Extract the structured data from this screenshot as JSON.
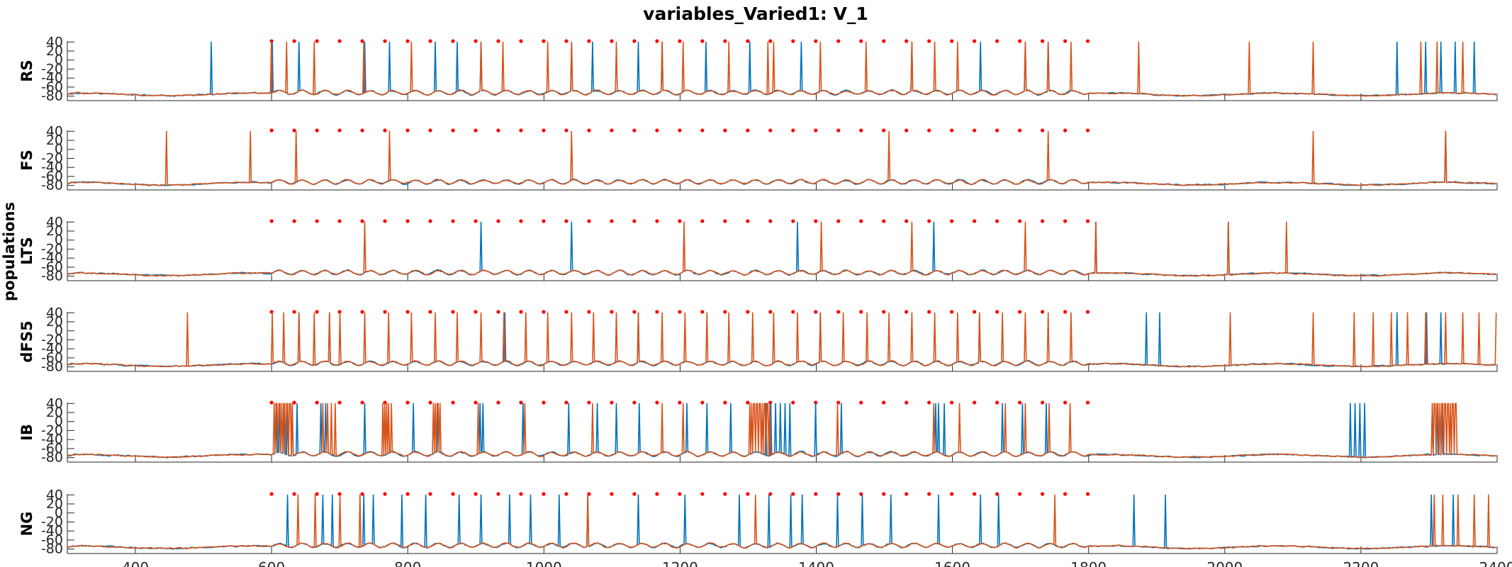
{
  "chart_data": {
    "type": "line",
    "title": "variables_Varied1: V_1",
    "ylabel": "populations",
    "xlim": [
      300,
      2400
    ],
    "xticks": [
      400,
      600,
      800,
      1000,
      1200,
      1400,
      1600,
      1800,
      2000,
      2200,
      2400
    ],
    "ylim": [
      -90,
      42
    ],
    "yticks": [
      40,
      20,
      0,
      -20,
      -40,
      -60,
      -80
    ],
    "ytick_labels": [
      "40",
      "20",
      "0",
      "-20",
      "-40",
      "-60",
      "-80"
    ],
    "series_colors": [
      "#0072BD",
      "#D95319"
    ],
    "marker_color": "#FF0000",
    "stimulus_markers": {
      "start": 600,
      "end": 1800,
      "interval": 33.3,
      "y": 42
    },
    "panels": [
      {
        "name": "RS",
        "series": [
          {
            "color": "#0072BD",
            "spikes": [
              512,
              601,
              640,
              737,
              773,
              841,
              872,
              907,
              1040,
              1072,
              1139,
              1173,
              1238,
              1303,
              1378,
              1540,
              1641,
              1707,
              1740,
              2253,
              2295,
              2318,
              2338,
              2367
            ]
          },
          {
            "color": "#D95319",
            "spikes": [
              600,
              622,
              663,
              736,
              805,
              907,
              940,
              1005,
              1040,
              1107,
              1173,
              1205,
              1272,
              1329,
              1338,
              1406,
              1473,
              1541,
              1574,
              1608,
              1707,
              1740,
              1774,
              1874,
              2036,
              2130,
              2288,
              2312,
              2350
            ]
          }
        ]
      },
      {
        "name": "FS",
        "series": [
          {
            "color": "#0072BD",
            "spikes": [
              2325
            ]
          },
          {
            "color": "#D95319",
            "spikes": [
              445,
              569,
              636,
              773,
              1040,
              1507,
              1740,
              2130,
              2325
            ]
          }
        ]
      },
      {
        "name": "LTS",
        "series": [
          {
            "color": "#0072BD",
            "spikes": [
              907,
              1040,
              1373,
              1573,
              1810,
              2005
            ]
          },
          {
            "color": "#D95319",
            "spikes": [
              737,
              1206,
              1407,
              1540,
              1707,
              1810,
              2005,
              2090
            ]
          }
        ]
      },
      {
        "name": "dFS5",
        "series": [
          {
            "color": "#0072BD",
            "spikes": [
              640,
              685,
              942,
              1138,
              1406,
              1640,
              1885,
              1905,
              2253,
              2296,
              2318
            ]
          },
          {
            "color": "#D95319",
            "spikes": [
              477,
              601,
              618,
              640,
              663,
              685,
              700,
              737,
              772,
              805,
              840,
              873,
              907,
              941,
              974,
              1005,
              1040,
              1073,
              1107,
              1139,
              1173,
              1207,
              1240,
              1272,
              1306,
              1338,
              1373,
              1406,
              1440,
              1474,
              1507,
              1541,
              1574,
              1608,
              1640,
              1674,
              1707,
              1740,
              1774,
              2008,
              2130,
              2190,
              2218,
              2244,
              2268,
              2295,
              2325,
              2350,
              2374,
              2399
            ]
          }
        ]
      },
      {
        "name": "IB",
        "series": [
          {
            "color": "#0072BD",
            "spikes": [
              606,
              612,
              618,
              624,
              630,
              637,
              672,
              680,
              737,
              808,
              844,
              906,
              910,
              969,
              1037,
              1078,
              1107,
              1140,
              1210,
              1240,
              1274,
              1326,
              1333,
              1340,
              1347,
              1354,
              1361,
              1399,
              1437,
              1576,
              1580,
              1588,
              1673,
              1703,
              1738,
              2185,
              2192,
              2199,
              2206,
              2305,
              2312,
              2319
            ]
          },
          {
            "color": "#D95319",
            "spikes": [
              675,
              682,
              688,
              694,
              776,
              840,
              904,
              972,
              1071,
              1174,
              1205,
              1431,
              1573,
              1610,
              1677,
              1707,
              1742,
              1773
            ]
          }
        ],
        "bursts": [
          {
            "color": "#D95319",
            "start": 604,
            "end": 632,
            "step": 2.2
          },
          {
            "color": "#D95319",
            "start": 764,
            "end": 773,
            "step": 2.4
          },
          {
            "color": "#D95319",
            "start": 838,
            "end": 848,
            "step": 2.4
          },
          {
            "color": "#D95319",
            "start": 1303,
            "end": 1333,
            "step": 2.2
          },
          {
            "color": "#D95319",
            "start": 2305,
            "end": 2342,
            "step": 2.2
          }
        ]
      },
      {
        "name": "NG",
        "series": [
          {
            "color": "#0072BD",
            "spikes": [
              623,
              675,
              689,
              735,
              750,
              792,
              826,
              876,
              907,
              950,
              981,
              1022,
              1064,
              1139,
              1207,
              1287,
              1331,
              1362,
              1380,
              1431,
              1467,
              1510,
              1579,
              1641,
              1668,
              1867,
              1913,
              2303,
              2336
            ]
          },
          {
            "color": "#D95319",
            "spikes": [
              639,
              664,
              700,
              730,
              1064,
              1311,
              1751,
              2307,
              2320,
              2343,
              2366,
              2387
            ]
          }
        ]
      }
    ]
  }
}
